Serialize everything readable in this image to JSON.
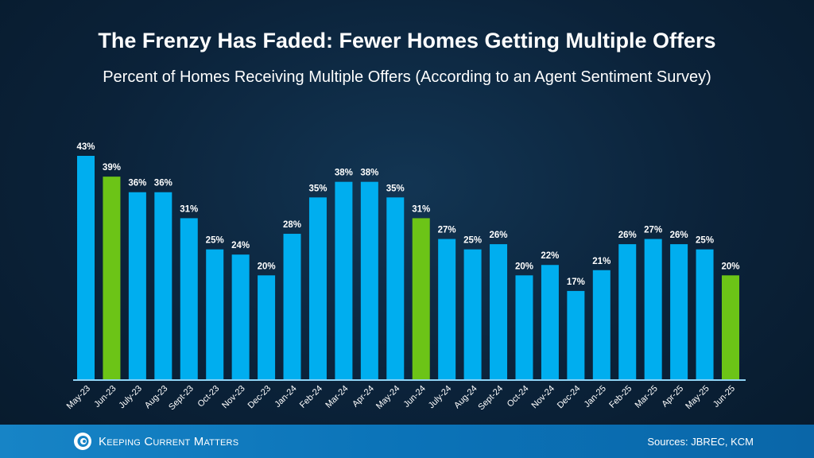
{
  "chart_data": {
    "type": "bar",
    "title": "The Frenzy Has Faded: Fewer Homes Getting Multiple Offers",
    "subtitle": "Percent of Homes Receiving Multiple Offers (According to an Agent Sentiment Survey)",
    "categories": [
      "May-23",
      "Jun-23",
      "July-23",
      "Aug-23",
      "Sept-23",
      "Oct-23",
      "Nov-23",
      "Dec-23",
      "Jan-24",
      "Feb-24",
      "Mar-24",
      "Apr-24",
      "May-24",
      "Jun-24",
      "July-24",
      "Aug-24",
      "Sept-24",
      "Oct-24",
      "Nov-24",
      "Dec-24",
      "Jan-25",
      "Feb-25",
      "Mar-25",
      "Apr-25",
      "May-25",
      "Jun-25"
    ],
    "values": [
      43,
      39,
      36,
      36,
      31,
      25,
      24,
      20,
      28,
      35,
      38,
      38,
      35,
      31,
      27,
      25,
      26,
      20,
      22,
      17,
      21,
      26,
      27,
      26,
      25,
      20
    ],
    "value_suffix": "%",
    "highlighted": [
      "Jun-23",
      "Jun-24",
      "Jun-25"
    ],
    "ylim": [
      0,
      43
    ],
    "grid": false,
    "colors": {
      "bar": "#00aeef",
      "highlight": "#6cc417",
      "axis": "#8fd3f4"
    }
  },
  "footer": {
    "brand": "Keeping Current Matters",
    "logo_icon": "spiral-logo-icon",
    "sources": "Sources: JBREC, KCM"
  }
}
